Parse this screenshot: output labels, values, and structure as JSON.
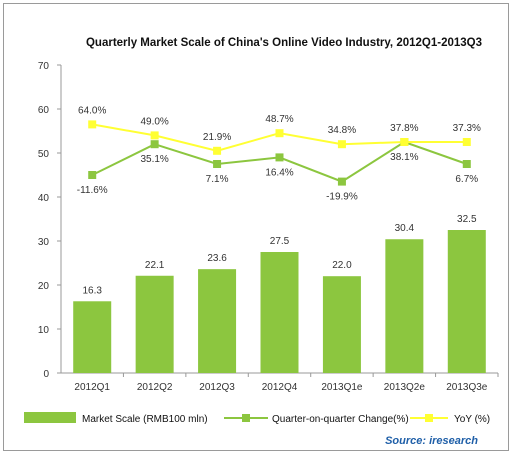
{
  "chart_data": {
    "type": "bar",
    "title": "Quarterly Market Scale of China's Online Video Industry, 2012Q1-2013Q3",
    "categories": [
      "2012Q1",
      "2012Q2",
      "2012Q3",
      "2012Q4",
      "2013Q1e",
      "2013Q2e",
      "2013Q3e"
    ],
    "ylim": [
      0,
      70
    ],
    "yticks": [
      0,
      10,
      20,
      30,
      40,
      50,
      60,
      70
    ],
    "grid": false,
    "legend_position": "bottom",
    "series": [
      {
        "name": "Market Scale (RMB100 mln)",
        "kind": "bar",
        "color": "#8cc63f",
        "values": [
          16.3,
          22.1,
          23.6,
          27.5,
          22.0,
          30.4,
          32.5
        ],
        "labels": [
          "16.3",
          "22.1",
          "23.6",
          "27.5",
          "22.0",
          "30.4",
          "32.5"
        ]
      },
      {
        "name": "Quarter-on-quarter Change(%)",
        "kind": "line",
        "color": "#8cc63f",
        "marker": "square",
        "plot_values": [
          45,
          52,
          47.5,
          49,
          43.5,
          52.5,
          47.5
        ],
        "labels": [
          "-11.6%",
          "35.1%",
          "7.1%",
          "16.4%",
          "-19.9%",
          "38.1%",
          "6.7%"
        ]
      },
      {
        "name": "YoY (%)",
        "kind": "line",
        "color": "#ffff33",
        "marker": "square",
        "plot_values": [
          56.5,
          54,
          50.5,
          54.5,
          52,
          52.5,
          52.5
        ],
        "labels": [
          "64.0%",
          "49.0%",
          "21.9%",
          "48.7%",
          "34.8%",
          "37.8%",
          "37.3%"
        ]
      }
    ],
    "source": "Source: iresearch"
  }
}
